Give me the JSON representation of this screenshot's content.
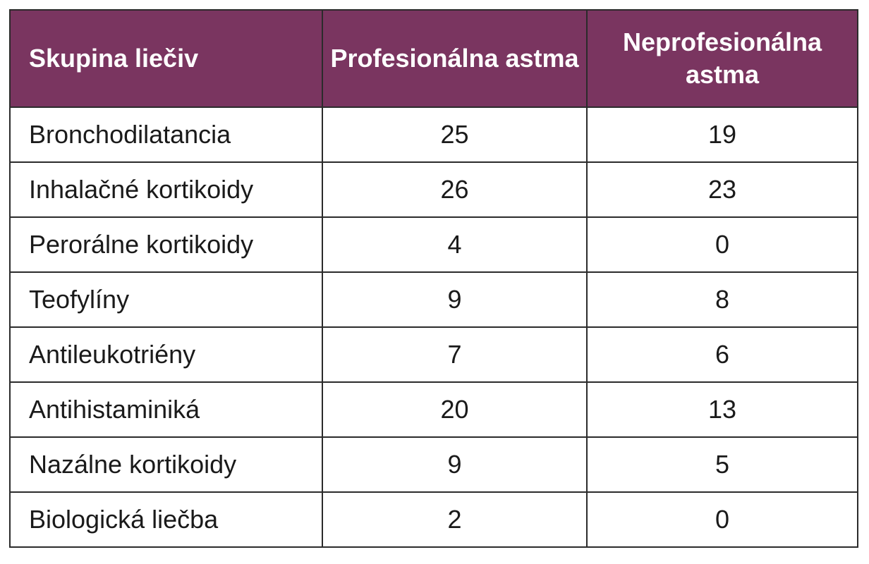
{
  "table": {
    "headers": {
      "group": "Skupina liečiv",
      "occupational": "Profesionálna astma",
      "non_occupational": "Neprofesionálna astma"
    },
    "rows": [
      {
        "group": "Bronchodilatancia",
        "occupational": "25",
        "non_occupational": "19"
      },
      {
        "group": "Inhalačné kortikoidy",
        "occupational": "26",
        "non_occupational": "23"
      },
      {
        "group": "Perorálne kortikoidy",
        "occupational": "4",
        "non_occupational": "0"
      },
      {
        "group": "Teofylíny",
        "occupational": "9",
        "non_occupational": "8"
      },
      {
        "group": "Antileukotriény",
        "occupational": "7",
        "non_occupational": "6"
      },
      {
        "group": "Antihistaminiká",
        "occupational": "20",
        "non_occupational": "13"
      },
      {
        "group": "Nazálne kortikoidy",
        "occupational": "9",
        "non_occupational": "5"
      },
      {
        "group": "Biologická liečba",
        "occupational": "2",
        "non_occupational": "0"
      }
    ]
  },
  "colors": {
    "header_background": "#7a3560",
    "header_text": "#ffffff",
    "border": "#2b2b2b",
    "body_text": "#1a1a1a"
  }
}
